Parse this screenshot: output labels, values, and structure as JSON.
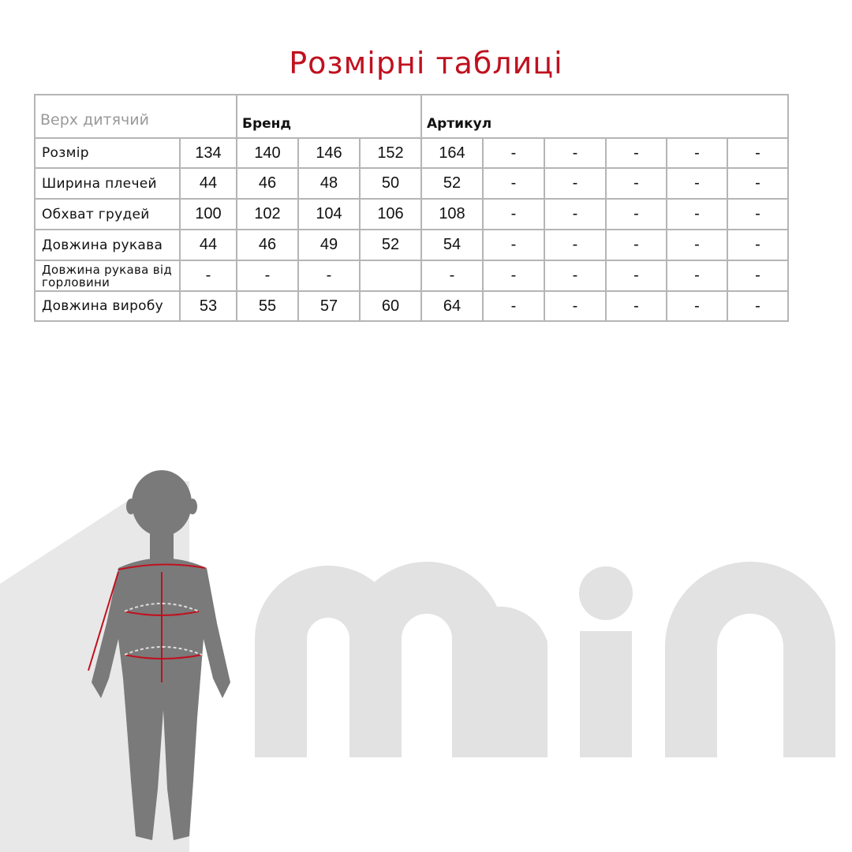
{
  "title": "Розмірні таблиці",
  "table": {
    "category": "Верх дитячий",
    "brand_label": "Бренд",
    "article_label": "Артикул",
    "rows": [
      {
        "label": "Розмір",
        "values": [
          "134",
          "140",
          "146",
          "152",
          "164",
          "-",
          "-",
          "-",
          "-",
          "-"
        ]
      },
      {
        "label": "Ширина плечей",
        "values": [
          "44",
          "46",
          "48",
          "50",
          "52",
          "-",
          "-",
          "-",
          "-",
          "-"
        ]
      },
      {
        "label": "Обхват грудей",
        "values": [
          "100",
          "102",
          "104",
          "106",
          "108",
          "-",
          "-",
          "-",
          "-",
          "-"
        ]
      },
      {
        "label": "Довжина рукава",
        "values": [
          "44",
          "46",
          "49",
          "52",
          "54",
          "-",
          "-",
          "-",
          "-",
          "-"
        ]
      },
      {
        "label": "Довжина рукава від горловини",
        "values": [
          "-",
          "-",
          "-",
          "",
          "-",
          "-",
          "-",
          "-",
          "-",
          "-"
        ]
      },
      {
        "label": "Довжина виробу",
        "values": [
          "53",
          "55",
          "57",
          "60",
          "64",
          "-",
          "-",
          "-",
          "-",
          "-"
        ]
      }
    ]
  },
  "logo": "min",
  "colors": {
    "title": "#c0111f",
    "silhouette": "#7a7a7a",
    "logo": "#e2e2e2",
    "measure": "#c0111f"
  }
}
